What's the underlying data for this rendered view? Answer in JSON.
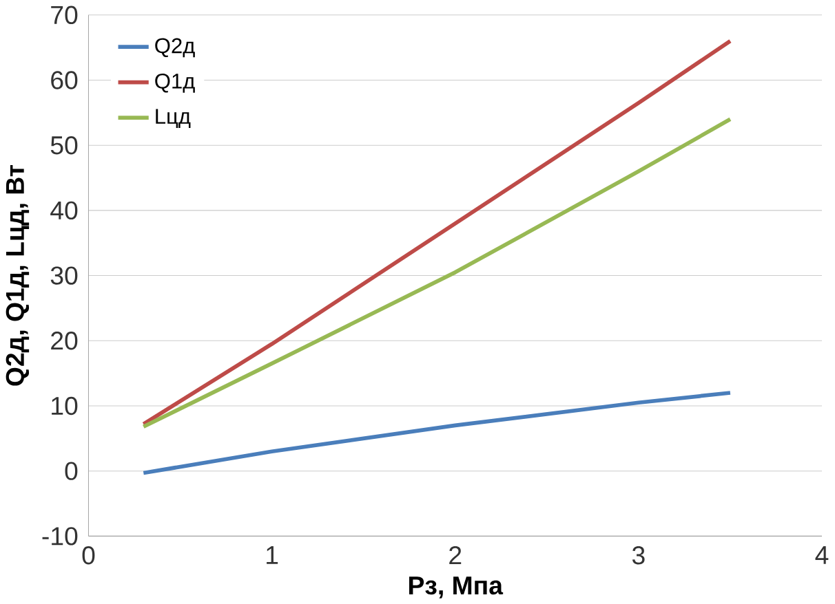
{
  "chart_data": {
    "type": "line",
    "xlabel": "Рз, Мпа",
    "ylabel": "Q2д,   Q1д,   Lцд, Вт",
    "xlim": [
      0,
      4
    ],
    "xticks": [
      0,
      1,
      2,
      3,
      4
    ],
    "ylim": [
      -10,
      70
    ],
    "yticks": [
      -10,
      0,
      10,
      20,
      30,
      40,
      50,
      60,
      70
    ],
    "grid": "y",
    "legend": "top left",
    "marker": "none",
    "line_style": "solid",
    "series": [
      {
        "name": "Q2д",
        "color": "#4a7ebb",
        "x": [
          0.3,
          1,
          2,
          3,
          3.5
        ],
        "values": [
          -0.3,
          3,
          7,
          10.5,
          12
        ]
      },
      {
        "name": "Q1д",
        "color": "#be4b48",
        "x": [
          0.3,
          1,
          2,
          3,
          3.5
        ],
        "values": [
          7.2,
          19.5,
          38,
          56.5,
          66
        ]
      },
      {
        "name": "Lцд",
        "color": "#98b954",
        "x": [
          0.3,
          1,
          2,
          3,
          3.5
        ],
        "values": [
          6.8,
          16.5,
          30.5,
          46,
          54
        ]
      }
    ]
  }
}
